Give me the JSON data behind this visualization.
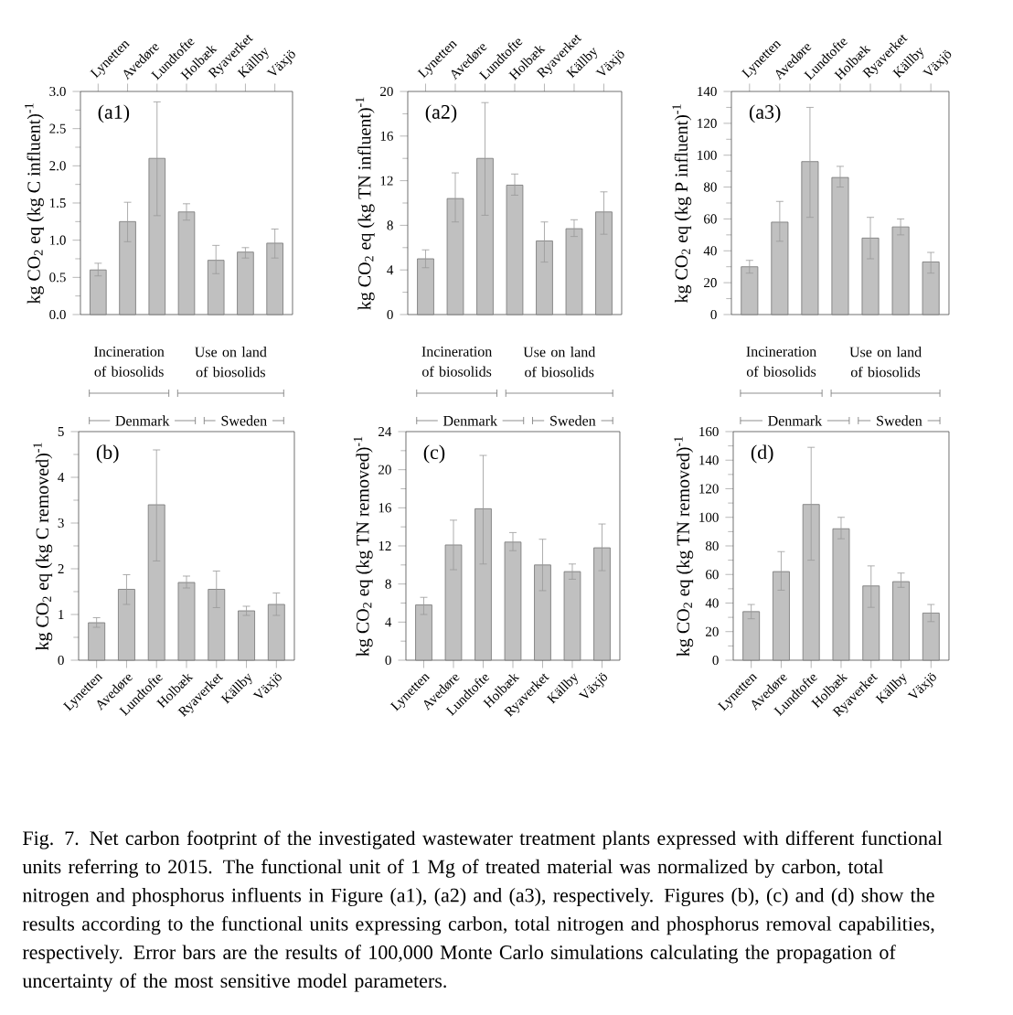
{
  "chart_data": [
    {
      "type": "bar",
      "title": "(a1)",
      "ylabel": "kg CO$_{2}$ eq (kg C influent)$^{-1}$",
      "categories": [
        "Lynetten",
        "Avedøre",
        "Lundtofte",
        "Holbæk",
        "Ryaverket",
        "Källby",
        "Växjö"
      ],
      "values": [
        0.6,
        1.25,
        2.1,
        1.38,
        0.73,
        0.84,
        0.96
      ],
      "errors": [
        [
          0.52,
          0.69
        ],
        [
          0.98,
          1.51
        ],
        [
          1.33,
          2.86
        ],
        [
          1.27,
          1.49
        ],
        [
          0.55,
          0.93
        ],
        [
          0.76,
          0.9
        ],
        [
          0.76,
          1.15
        ]
      ],
      "color": "#c0c0c0",
      "ylim": [
        0,
        3
      ],
      "yticks": [
        {
          "value": 0,
          "label": "0.0"
        },
        {
          "value": 0.5,
          "label": "0.5"
        },
        {
          "value": 1,
          "label": "1.0"
        },
        {
          "value": 1.5,
          "label": "1.5"
        },
        {
          "value": 2,
          "label": "2.0"
        },
        {
          "value": 2.5,
          "label": "2.5"
        },
        {
          "value": 3,
          "label": "3.0"
        }
      ],
      "annotations": [
        "Incineration of biosolids",
        "Use on land of biosolids",
        "Denmark",
        "Sweden"
      ]
    },
    {
      "type": "bar",
      "title": "(a2)",
      "ylabel": "kg CO$_{2}$ eq (kg TN influent)$^{-1}$",
      "categories": [
        "Lynetten",
        "Avedøre",
        "Lundtofte",
        "Holbæk",
        "Ryaverket",
        "Källby",
        "Växjö"
      ],
      "values": [
        5.0,
        10.4,
        14.0,
        11.6,
        6.6,
        7.7,
        9.2
      ],
      "errors": [
        [
          4.2,
          5.8
        ],
        [
          8.3,
          12.7
        ],
        [
          8.9,
          19.0
        ],
        [
          10.7,
          12.6
        ],
        [
          4.7,
          8.3
        ],
        [
          7.0,
          8.5
        ],
        [
          7.2,
          11.0
        ]
      ],
      "color": "#c0c0c0",
      "ylim": [
        0,
        20
      ],
      "yticks": [
        0,
        4,
        8,
        12,
        16,
        20
      ],
      "annotations": [
        "Incineration of biosolids",
        "Use on land of biosolids",
        "Denmark",
        "Sweden"
      ]
    },
    {
      "type": "bar",
      "title": "(a3)",
      "ylabel": "kg CO$_{2}$ eq (kg P influent)$^{-1}$",
      "categories": [
        "Lynetten",
        "Avedøre",
        "Lundtofte",
        "Holbæk",
        "Ryaverket",
        "Källby",
        "Växjö"
      ],
      "values": [
        30,
        58,
        96,
        86,
        48,
        55,
        33
      ],
      "errors": [
        [
          26,
          34
        ],
        [
          46,
          71
        ],
        [
          61,
          130
        ],
        [
          80,
          93
        ],
        [
          35,
          61
        ],
        [
          50,
          60
        ],
        [
          26,
          39
        ]
      ],
      "color": "#c0c0c0",
      "ylim": [
        0,
        140
      ],
      "yticks": [
        0,
        20,
        40,
        60,
        80,
        100,
        120,
        140
      ],
      "annotations": [
        "Incineration of biosolids",
        "Use on land of biosolids",
        "Denmark",
        "Sweden"
      ]
    },
    {
      "type": "bar",
      "title": "(b)",
      "ylabel": "kg CO$_{2}$ eq (kg C removed)$^{-1}$",
      "categories": [
        "Lynetten",
        "Avedøre",
        "Lundtofte",
        "Holbæk",
        "Ryaverket",
        "Källby",
        "Växjö"
      ],
      "values": [
        0.82,
        1.55,
        3.4,
        1.7,
        1.55,
        1.08,
        1.22
      ],
      "errors": [
        [
          0.72,
          0.93
        ],
        [
          1.22,
          1.87
        ],
        [
          2.17,
          4.6
        ],
        [
          1.58,
          1.84
        ],
        [
          1.15,
          1.95
        ],
        [
          0.98,
          1.18
        ],
        [
          0.98,
          1.47
        ]
      ],
      "color": "#c0c0c0",
      "ylim": [
        0,
        5
      ],
      "yticks": [
        0,
        1,
        2,
        3,
        4,
        5
      ]
    },
    {
      "type": "bar",
      "title": "(c)",
      "ylabel": "kg CO$_{2}$ eq (kg TN removed)$^{-1}$",
      "categories": [
        "Lynetten",
        "Avedøre",
        "Lundtofte",
        "Holbæk",
        "Ryaverket",
        "Källby",
        "Växjö"
      ],
      "values": [
        5.8,
        12.1,
        15.9,
        12.4,
        10.0,
        9.3,
        11.8
      ],
      "errors": [
        [
          4.8,
          6.6
        ],
        [
          9.5,
          14.7
        ],
        [
          10.1,
          21.5
        ],
        [
          11.5,
          13.4
        ],
        [
          7.3,
          12.7
        ],
        [
          8.5,
          10.1
        ],
        [
          9.4,
          14.3
        ]
      ],
      "color": "#c0c0c0",
      "ylim": [
        0,
        24
      ],
      "yticks": [
        0,
        4,
        8,
        12,
        16,
        20,
        24
      ]
    },
    {
      "type": "bar",
      "title": "(d)",
      "ylabel": "kg CO$_{2}$ eq (kg TN removed)$^{-1}$",
      "categories": [
        "Lynetten",
        "Avedøre",
        "Lundtofte",
        "Holbæk",
        "Ryaverket",
        "Källby",
        "Växjö"
      ],
      "values": [
        34,
        62,
        109,
        92,
        52,
        55,
        33
      ],
      "errors": [
        [
          29,
          39
        ],
        [
          49,
          76
        ],
        [
          70,
          149
        ],
        [
          85,
          100
        ],
        [
          37,
          66
        ],
        [
          51,
          61
        ],
        [
          27,
          39
        ]
      ],
      "color": "#c0c0c0",
      "ylim": [
        0,
        160
      ],
      "yticks": [
        0,
        20,
        40,
        60,
        80,
        100,
        120,
        140,
        160
      ],
      "annotations": [
        "Fig. 7. Net carbon footprint of the investigated wastewater treatment plants expressed with different functional units referring to 2015. The functional unit of 1 Mg of treated material was normalized by carbon, total nitrogen and phosphorus influents in Figure (a1), (a2) and (a3), respectively. Figures (b), (c) and (d) show the results according to the functional units expressing carbon, total nitrogen and phosphorus removal capabilities, respectively. Error bars are the results of 100,000 Monte Carlo simulations calculating the propagation of uncertainty of the most sensitive model parameters."
      ]
    }
  ]
}
